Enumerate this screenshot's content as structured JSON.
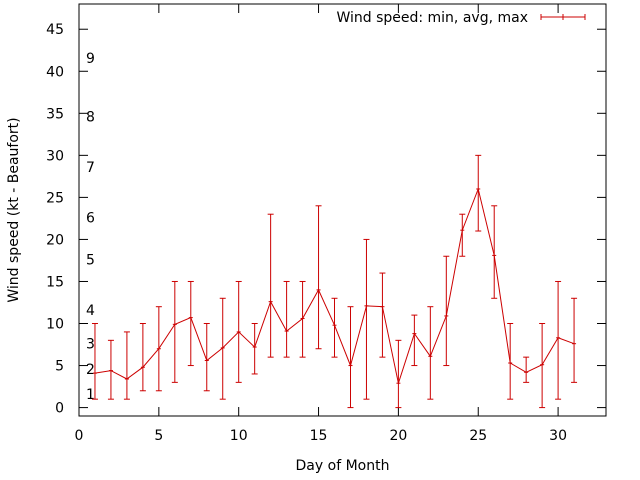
{
  "chart_data": {
    "type": "line",
    "title": "",
    "xlabel": "Day of Month",
    "ylabel": "Wind speed (kt - Beaufort)",
    "xlim": [
      0,
      33
    ],
    "ylim": [
      -1,
      48
    ],
    "xticks": [
      0,
      5,
      10,
      15,
      20,
      25,
      30
    ],
    "yticks": [
      0,
      5,
      10,
      15,
      20,
      25,
      30,
      35,
      40,
      45
    ],
    "legend": {
      "label": "Wind speed: min, avg, max",
      "position": "top-right"
    },
    "beaufort_labels": [
      {
        "label": "1",
        "at": 1
      },
      {
        "label": "2",
        "at": 4
      },
      {
        "label": "3",
        "at": 7
      },
      {
        "label": "4",
        "at": 11
      },
      {
        "label": "5",
        "at": 17
      },
      {
        "label": "6",
        "at": 22
      },
      {
        "label": "7",
        "at": 28
      },
      {
        "label": "8",
        "at": 34
      },
      {
        "label": "9",
        "at": 41
      }
    ],
    "series": [
      {
        "name": "Wind speed: min, avg, max",
        "color": "#cc0000",
        "points": [
          {
            "x": 1,
            "min": 1,
            "avg": 4.1,
            "max": 10
          },
          {
            "x": 2,
            "min": 1,
            "avg": 4.4,
            "max": 8
          },
          {
            "x": 3,
            "min": 1,
            "avg": 3.4,
            "max": 9
          },
          {
            "x": 4,
            "min": 2,
            "avg": 4.8,
            "max": 10
          },
          {
            "x": 5,
            "min": 2,
            "avg": 7.0,
            "max": 12
          },
          {
            "x": 6,
            "min": 3,
            "avg": 9.9,
            "max": 15
          },
          {
            "x": 7,
            "min": 5,
            "avg": 10.7,
            "max": 15
          },
          {
            "x": 8,
            "min": 2,
            "avg": 5.6,
            "max": 10
          },
          {
            "x": 9,
            "min": 1,
            "avg": 7.1,
            "max": 13
          },
          {
            "x": 10,
            "min": 3,
            "avg": 9.0,
            "max": 15
          },
          {
            "x": 11,
            "min": 4,
            "avg": 7.2,
            "max": 10
          },
          {
            "x": 12,
            "min": 6,
            "avg": 12.6,
            "max": 23
          },
          {
            "x": 13,
            "min": 6,
            "avg": 9.1,
            "max": 15
          },
          {
            "x": 14,
            "min": 6,
            "avg": 10.6,
            "max": 15
          },
          {
            "x": 15,
            "min": 7,
            "avg": 14.0,
            "max": 24
          },
          {
            "x": 16,
            "min": 6,
            "avg": 9.8,
            "max": 13
          },
          {
            "x": 17,
            "min": 0,
            "avg": 5.0,
            "max": 12
          },
          {
            "x": 18,
            "min": 1,
            "avg": 12.1,
            "max": 20
          },
          {
            "x": 19,
            "min": 6,
            "avg": 12.0,
            "max": 16
          },
          {
            "x": 20,
            "min": 0,
            "avg": 2.9,
            "max": 8
          },
          {
            "x": 21,
            "min": 5,
            "avg": 8.8,
            "max": 11
          },
          {
            "x": 22,
            "min": 1,
            "avg": 6.1,
            "max": 12
          },
          {
            "x": 23,
            "min": 5,
            "avg": 10.9,
            "max": 18
          },
          {
            "x": 24,
            "min": 18,
            "avg": 21.1,
            "max": 23
          },
          {
            "x": 25,
            "min": 21,
            "avg": 26.0,
            "max": 30
          },
          {
            "x": 26,
            "min": 13,
            "avg": 18.1,
            "max": 24
          },
          {
            "x": 27,
            "min": 1,
            "avg": 5.3,
            "max": 10
          },
          {
            "x": 28,
            "min": 3,
            "avg": 4.2,
            "max": 6
          },
          {
            "x": 29,
            "min": 0,
            "avg": 5.1,
            "max": 10
          },
          {
            "x": 30,
            "min": 1,
            "avg": 8.3,
            "max": 15
          },
          {
            "x": 31,
            "min": 3,
            "avg": 7.6,
            "max": 13
          }
        ]
      }
    ]
  }
}
